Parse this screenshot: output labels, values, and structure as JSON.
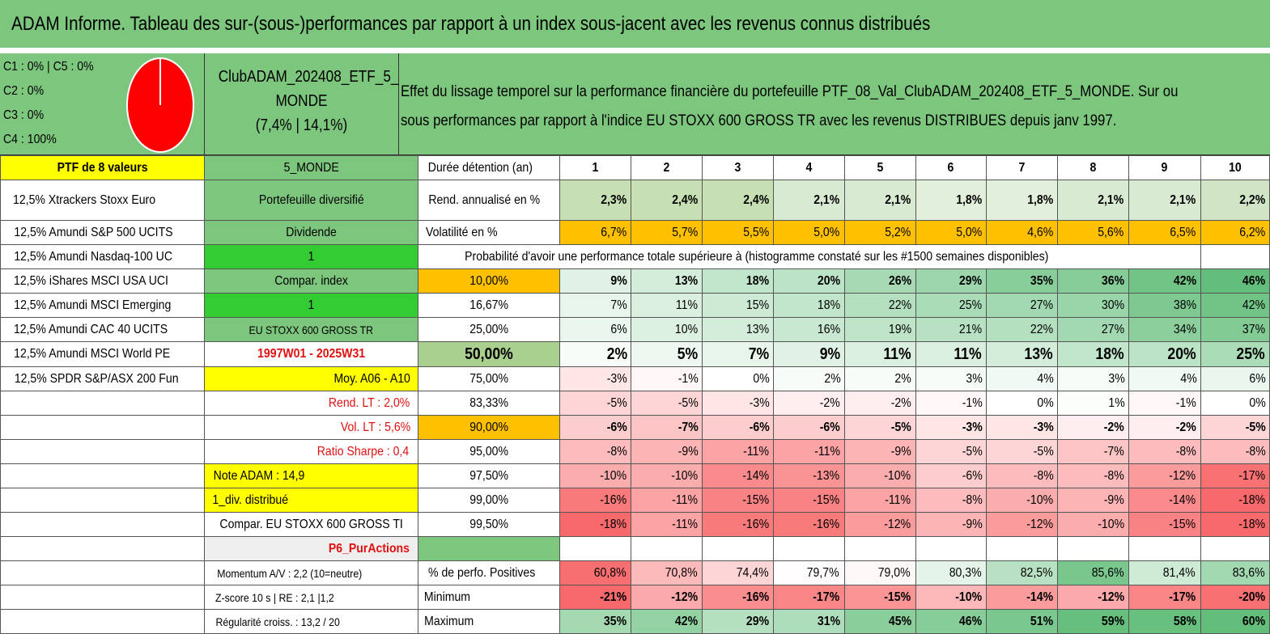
{
  "title": "ADAM Informe. Tableau des sur-(sous-)performances par rapport à un index sous-jacent avec les revenus connus distribués",
  "classes": [
    "C1 : 0% | C5 : 0%",
    "C2 : 0%",
    "C3 : 0%",
    "C4 : 100%"
  ],
  "pie_color": "#ff0000",
  "club": {
    "line1": "ClubADAM_202408_ETF_5_",
    "line2": "MONDE",
    "line3": "(7,4% | 14,1%)"
  },
  "effect": {
    "line1": "Effet du lissage temporel sur la performance financière du portefeuille PTF_08_Val_ClubADAM_202408_ETF_5_MONDE. Sur ou",
    "line2": "sous performances par rapport à l'indice EU STOXX 600 GROSS TR avec les revenus DISTRIBUES depuis janv 1997."
  },
  "header_row": {
    "ptf": "PTF de 8 valeurs",
    "code": "5_MONDE",
    "label": "Durée détention (an)",
    "years": [
      "1",
      "2",
      "3",
      "4",
      "5",
      "6",
      "7",
      "8",
      "9",
      "10"
    ]
  },
  "holdings": [
    "12,5% Xtrackers Stoxx Euro",
    "12,5% Amundi S&P 500 UCITS",
    "12,5% Amundi Nasdaq-100 UC",
    "12,5% iShares MSCI USA UCI",
    "12,5% Amundi MSCI Emerging",
    "12,5% Amundi CAC 40 UCITS",
    "12,5% Amundi MSCI World PE",
    "12,5% SPDR S&P/ASX 200 Fun"
  ],
  "info": {
    "diversifie": "Portefeuille diversifié",
    "dividende": "Dividende",
    "one_a": "1",
    "compar_index": "Compar. index",
    "one_b": "1",
    "index_name": "EU STOXX 600 GROSS TR",
    "period": "1997W01 - 2025W31",
    "moy": "Moy. A06 - A10",
    "rend_lt": "Rend. LT : 2,0%",
    "vol_lt": "Vol. LT : 5,6%",
    "sharpe": "Ratio Sharpe : 0,4",
    "note": "Note ADAM : 14,9",
    "div": "1_div. distribué",
    "compar": "Compar. EU STOXX 600 GROSS TI",
    "p6": "P6_PurActions",
    "momentum": "Momentum A/V : 2,2 (10=neutre)",
    "zscore": "Z-score 10 s | RE : 2,1 |1,2",
    "regularite": "Régularité croiss. : 13,2 / 20"
  },
  "rend": {
    "label": "Rend. annualisé en %",
    "values": [
      "2,3%",
      "2,4%",
      "2,4%",
      "2,1%",
      "2,1%",
      "1,8%",
      "1,8%",
      "2,1%",
      "2,1%",
      "2,2%"
    ]
  },
  "vol": {
    "label": "Volatilité en %",
    "values": [
      "6,7%",
      "5,7%",
      "5,5%",
      "5,0%",
      "5,2%",
      "5,0%",
      "4,6%",
      "5,6%",
      "6,5%",
      "6,2%"
    ]
  },
  "proba_title": "Probabilité d'avoir une performance totale supérieure à (histogramme constaté sur les #1500 semaines disponibles)",
  "percentile_rows": [
    {
      "pct": "10,00%",
      "values": [
        "9%",
        "13%",
        "18%",
        "20%",
        "26%",
        "29%",
        "35%",
        "36%",
        "42%",
        "46%"
      ]
    },
    {
      "pct": "16,67%",
      "values": [
        "7%",
        "11%",
        "15%",
        "18%",
        "22%",
        "25%",
        "27%",
        "30%",
        "38%",
        "42%"
      ]
    },
    {
      "pct": "25,00%",
      "values": [
        "6%",
        "10%",
        "13%",
        "16%",
        "19%",
        "21%",
        "22%",
        "27%",
        "34%",
        "37%"
      ]
    },
    {
      "pct": "50,00%",
      "values": [
        "2%",
        "5%",
        "7%",
        "9%",
        "11%",
        "11%",
        "13%",
        "18%",
        "20%",
        "25%"
      ]
    },
    {
      "pct": "75,00%",
      "values": [
        "-3%",
        "-1%",
        "0%",
        "2%",
        "2%",
        "3%",
        "4%",
        "3%",
        "4%",
        "6%"
      ]
    },
    {
      "pct": "83,33%",
      "values": [
        "-5%",
        "-5%",
        "-3%",
        "-2%",
        "-2%",
        "-1%",
        "0%",
        "1%",
        "-1%",
        "0%"
      ]
    },
    {
      "pct": "90,00%",
      "values": [
        "-6%",
        "-7%",
        "-6%",
        "-6%",
        "-5%",
        "-3%",
        "-3%",
        "-2%",
        "-2%",
        "-5%"
      ]
    },
    {
      "pct": "95,00%",
      "values": [
        "-8%",
        "-9%",
        "-11%",
        "-11%",
        "-9%",
        "-5%",
        "-5%",
        "-7%",
        "-8%",
        "-8%"
      ]
    },
    {
      "pct": "97,50%",
      "values": [
        "-10%",
        "-10%",
        "-14%",
        "-13%",
        "-10%",
        "-6%",
        "-8%",
        "-8%",
        "-12%",
        "-17%"
      ]
    },
    {
      "pct": "99,00%",
      "values": [
        "-16%",
        "-11%",
        "-15%",
        "-15%",
        "-11%",
        "-8%",
        "-10%",
        "-9%",
        "-14%",
        "-18%"
      ]
    },
    {
      "pct": "99,50%",
      "values": [
        "-18%",
        "-11%",
        "-16%",
        "-16%",
        "-12%",
        "-9%",
        "-12%",
        "-10%",
        "-15%",
        "-18%"
      ]
    }
  ],
  "positives": {
    "label": "% de perfo. Positives",
    "values": [
      "60,8%",
      "70,8%",
      "74,4%",
      "79,7%",
      "79,0%",
      "80,3%",
      "82,5%",
      "85,6%",
      "81,4%",
      "83,6%"
    ]
  },
  "minimum": {
    "label": "Minimum",
    "values": [
      "-21%",
      "-12%",
      "-16%",
      "-17%",
      "-15%",
      "-10%",
      "-14%",
      "-12%",
      "-17%",
      "-20%"
    ]
  },
  "maximum": {
    "label": "Maximum",
    "values": [
      "35%",
      "42%",
      "29%",
      "31%",
      "45%",
      "46%",
      "51%",
      "59%",
      "58%",
      "60%"
    ]
  }
}
